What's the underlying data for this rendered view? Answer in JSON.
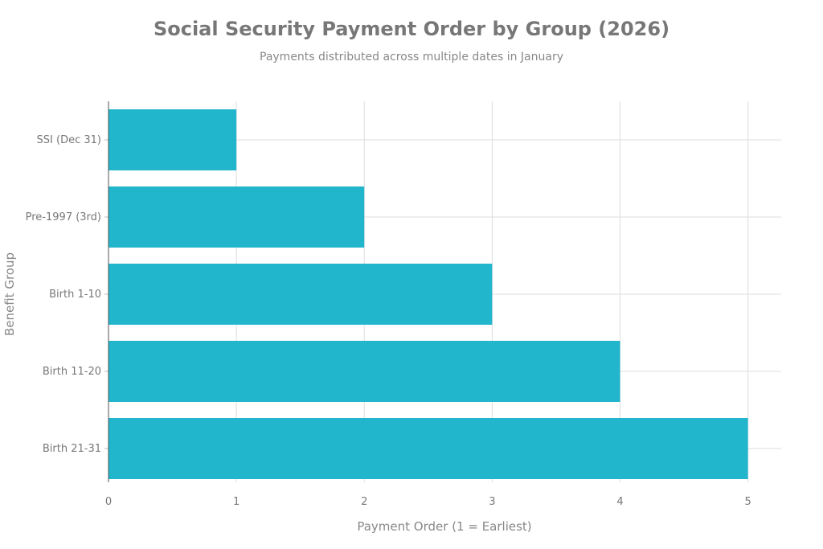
{
  "chart_data": {
    "type": "bar",
    "orientation": "horizontal",
    "title": "Social Security Payment Order by Group (2026)",
    "subtitle": "Payments distributed across multiple dates in January",
    "xlabel": "Payment Order (1 = Earliest)",
    "ylabel": "Benefit Group",
    "categories": [
      "SSI (Dec 31)",
      "Pre-1997 (3rd)",
      "Birth 1-10",
      "Birth 11-20",
      "Birth 21-31"
    ],
    "values": [
      1,
      2,
      3,
      4,
      5
    ],
    "xlim": [
      0,
      5.26
    ],
    "xticks": [
      "0",
      "1",
      "2",
      "3",
      "4",
      "5"
    ],
    "grid": true,
    "bar_color": "#21b6cb"
  }
}
